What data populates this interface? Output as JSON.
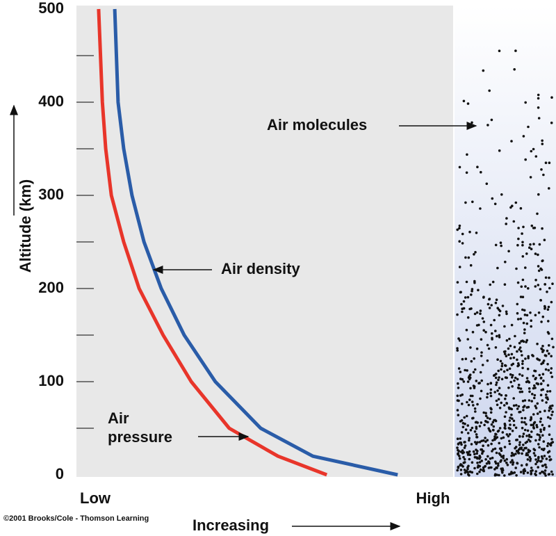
{
  "chart_data": {
    "type": "line",
    "y_label": "Altitude (km)",
    "x_label": "Increasing",
    "credit": "©2001 Brooks/Cole - Thomson Learning",
    "annotations": [
      "Air molecules",
      "Air density",
      "Air",
      "pressure"
    ],
    "y": [
      500,
      400,
      350,
      300,
      250,
      200,
      150,
      100,
      50,
      20,
      0
    ],
    "series": [
      {
        "color": "#e8352a",
        "values": [
          5.9,
          6.9,
          7.8,
          9.3,
          12.6,
          16.7,
          23.1,
          30.6,
          40.7,
          53.7,
          66.7
        ]
      },
      {
        "color": "#2a5ca8",
        "values": [
          10.2,
          11.1,
          12.6,
          14.8,
          18,
          22.6,
          28.7,
          37,
          49.1,
          63,
          85.6
        ]
      }
    ],
    "xlim": [
      0,
      100
    ],
    "xticks": [
      {
        "value": 5,
        "label": "Low"
      },
      {
        "value": 95,
        "label": "High"
      }
    ],
    "ylim": [
      0,
      500
    ],
    "yticks": [
      0,
      100,
      200,
      300,
      400,
      500
    ],
    "yticks_minor": [
      50,
      150,
      250,
      350,
      450
    ]
  }
}
